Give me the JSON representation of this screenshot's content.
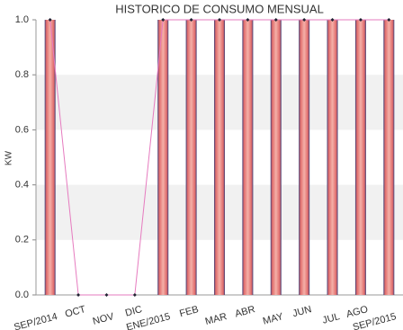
{
  "chart_data": {
    "type": "bar",
    "title": "HISTORICO DE CONSUMO MENSUAL",
    "y_label": "KW",
    "categories": [
      "SEP/2014",
      "OCT",
      "NOV",
      "DIC",
      "ENE/2015",
      "FEB",
      "MAR",
      "ABR",
      "MAY",
      "JUN",
      "JUL",
      "AGO",
      "SEP/2015"
    ],
    "series": [
      {
        "type": "bar",
        "color": "#e06a6a",
        "values": [
          1,
          0,
          0,
          0,
          1,
          1,
          1,
          1,
          1,
          1,
          1,
          1,
          1
        ]
      },
      {
        "type": "line",
        "color": "#e67bbf",
        "values": [
          1,
          0,
          0,
          0,
          1,
          1,
          1,
          1,
          1,
          1,
          1,
          1,
          1
        ]
      }
    ],
    "ylim": [
      0,
      1
    ],
    "yticks": [
      {
        "value": 0,
        "label": "0.0"
      },
      0.2,
      0.4,
      0.6,
      0.8,
      {
        "value": 1,
        "label": "1.0"
      }
    ],
    "grid": true
  }
}
